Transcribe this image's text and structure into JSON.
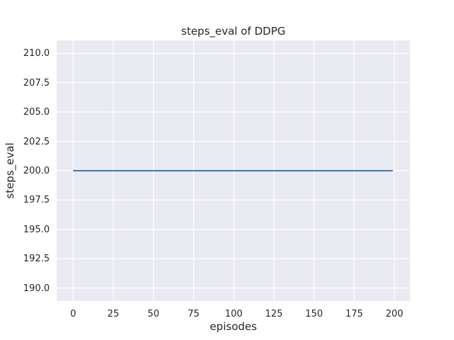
{
  "chart_data": {
    "type": "line",
    "title": "steps_eval of DDPG",
    "xlabel": "episodes",
    "ylabel": "steps_eval",
    "xlim": [
      -10.2,
      209.7
    ],
    "ylim": [
      188.9,
      211.1
    ],
    "xticks": {
      "values": [
        0,
        25,
        50,
        75,
        100,
        125,
        150,
        175,
        200
      ],
      "labels": [
        "0",
        "25",
        "50",
        "75",
        "100",
        "125",
        "150",
        "175",
        "200"
      ]
    },
    "yticks": {
      "values": [
        190.0,
        192.5,
        195.0,
        197.5,
        200.0,
        202.5,
        205.0,
        207.5,
        210.0
      ],
      "labels": [
        "190.0",
        "192.5",
        "195.0",
        "197.5",
        "200.0",
        "202.5",
        "205.0",
        "207.5",
        "210.0"
      ]
    },
    "grid": true,
    "series": [
      {
        "name": "steps_eval",
        "color": "#4C72B0",
        "line_width": 2,
        "x": [
          0,
          199
        ],
        "y": [
          200,
          200
        ]
      }
    ],
    "style": {
      "plot_background": "#EAEAF2",
      "grid_color": "#FFFFFF",
      "text_color": "#262626",
      "figure_background": "#FFFFFF"
    }
  }
}
